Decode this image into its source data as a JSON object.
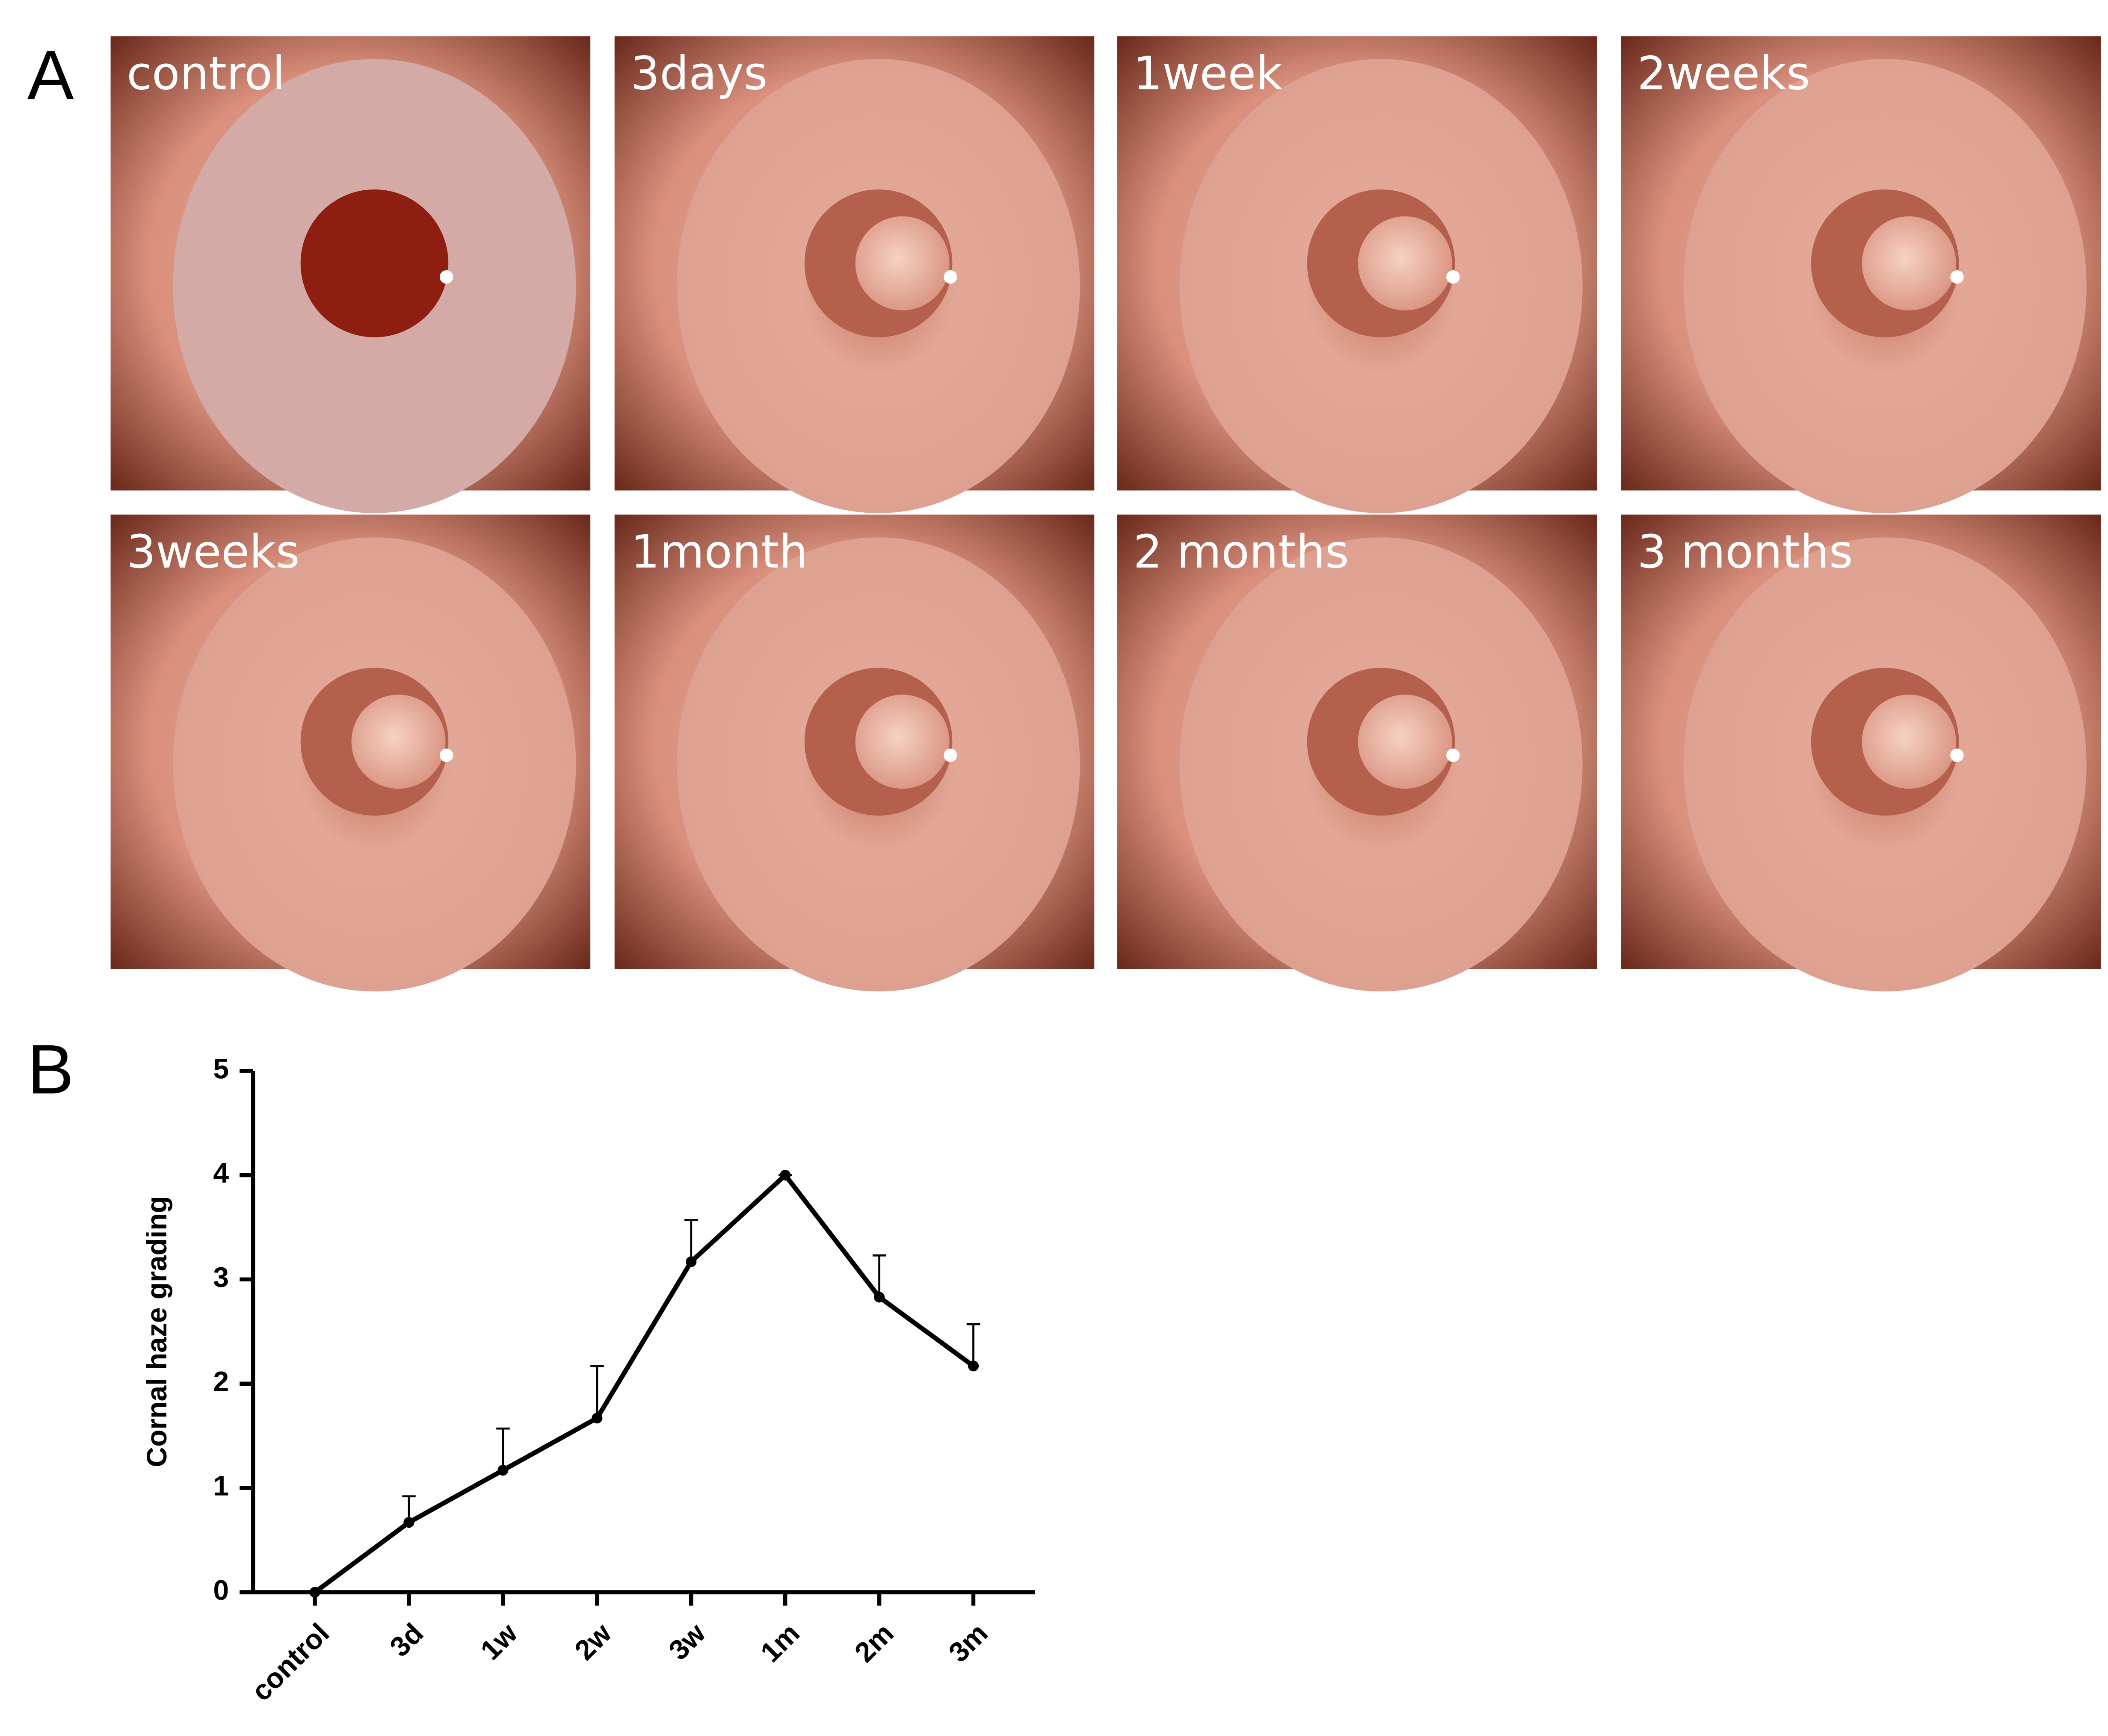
{
  "figure": {
    "panel_a": "A",
    "panel_b": "B",
    "photos": [
      "control",
      "3days",
      "1week",
      "2weeks",
      "3weeks",
      "1month",
      "2 months",
      "3 months"
    ]
  },
  "chart_data": {
    "type": "line",
    "y_label": "Cornal haze grading",
    "categories": [
      "control",
      "3d",
      "1w",
      "2w",
      "3w",
      "1m",
      "2m",
      "3m"
    ],
    "values": [
      0,
      0.67,
      1.17,
      1.67,
      3.17,
      4,
      2.83,
      2.17
    ],
    "errors": [
      0,
      0.25,
      0.4,
      0.5,
      0.4,
      0,
      0.4,
      0.4
    ],
    "color": "#000000",
    "ylim": [
      0,
      5
    ],
    "yticks": [
      0,
      1,
      2,
      3,
      4,
      5
    ]
  }
}
